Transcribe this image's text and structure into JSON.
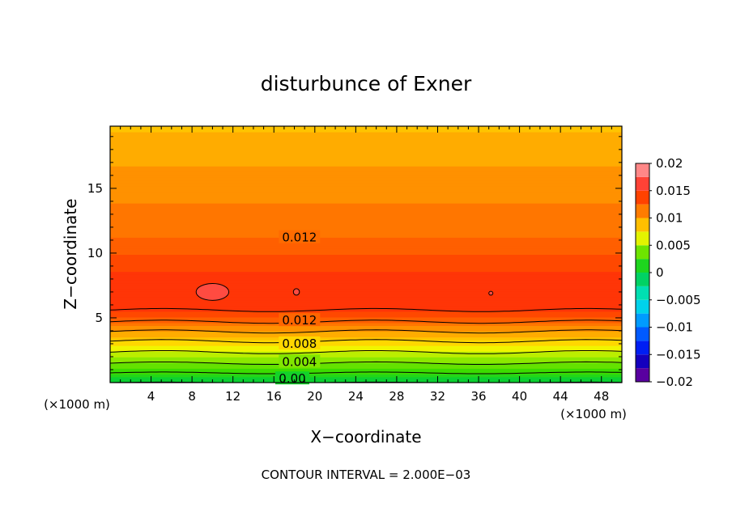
{
  "chart_data": {
    "type": "heatmap",
    "title": "disturbunce of Exner",
    "xlabel": "X−coordinate",
    "ylabel": "Z−coordinate",
    "x_unit": "(×1000 m)",
    "xlim": [
      0,
      50
    ],
    "ylim": [
      0,
      19.8
    ],
    "x_ticks": [
      4,
      8,
      12,
      16,
      20,
      24,
      28,
      32,
      36,
      40,
      44,
      48
    ],
    "y_ticks": [
      5,
      10,
      15
    ],
    "footer": "CONTOUR INTERVAL = 2.000E−03",
    "contour_interval": 0.002,
    "colorbar": {
      "range": [
        -0.02,
        0.02
      ],
      "tick_values": [
        0.02,
        0.015,
        0.01,
        0.005,
        0,
        -0.005,
        -0.01,
        -0.015,
        -0.02
      ],
      "tick_labels": [
        "0.02",
        "0.015",
        "0.01",
        "0.005",
        "0",
        "−0.005",
        "−0.01",
        "−0.015",
        "−0.02"
      ]
    },
    "field_profile": [
      {
        "z": 0.0,
        "value": 0.0
      },
      {
        "z": 1.5,
        "value": 0.004
      },
      {
        "z": 3.2,
        "value": 0.008
      },
      {
        "z": 4.7,
        "value": 0.012
      },
      {
        "z": 5.6,
        "value": 0.014
      },
      {
        "z": 7.0,
        "value": 0.0148
      },
      {
        "z": 8.5,
        "value": 0.014
      },
      {
        "z": 11.2,
        "value": 0.012
      },
      {
        "z": 13.8,
        "value": 0.011
      },
      {
        "z": 16.8,
        "value": 0.01
      },
      {
        "z": 19.8,
        "value": 0.0088
      }
    ],
    "contour_labels": [
      {
        "text": "0.012",
        "x": 18.5,
        "z": 11.2
      },
      {
        "text": "0.012",
        "x": 18.5,
        "z": 4.8
      },
      {
        "text": "0.008",
        "x": 18.5,
        "z": 3.0
      },
      {
        "text": "0.004",
        "x": 18.5,
        "z": 1.6
      },
      {
        "text": "0.00",
        "x": 17.8,
        "z": 0.3
      }
    ],
    "closed_contours": [
      {
        "x": 10.0,
        "z": 7.0,
        "rx": 1.6,
        "rz": 0.65,
        "value": 0.016
      },
      {
        "x": 18.2,
        "z": 7.0,
        "rx": 0.3,
        "rz": 0.25,
        "value": 0.016
      },
      {
        "x": 37.2,
        "z": 6.9,
        "rx": 0.2,
        "rz": 0.15,
        "value": 0.016
      }
    ]
  }
}
